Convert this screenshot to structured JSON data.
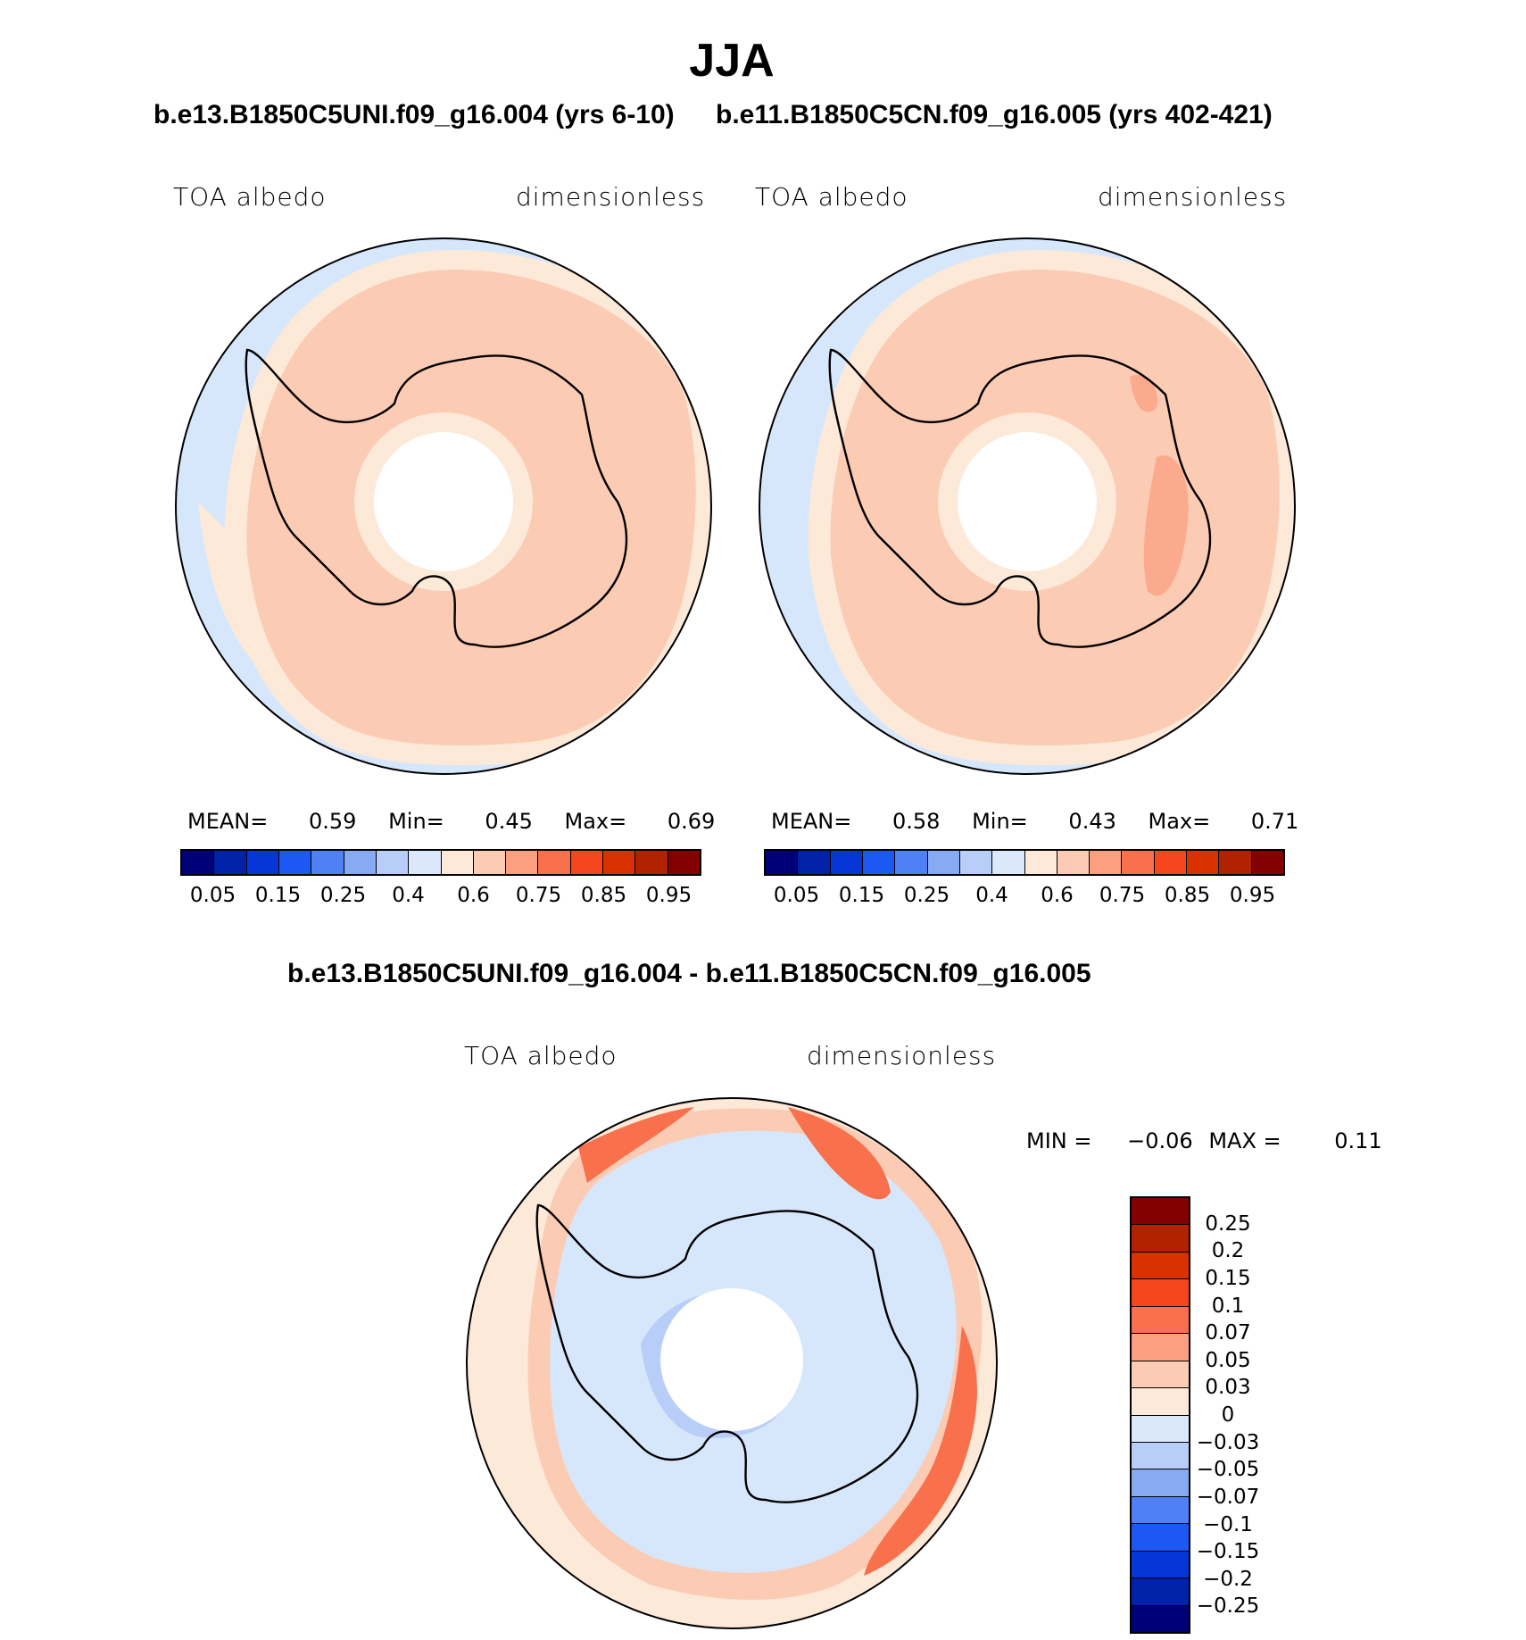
{
  "figure": {
    "title": "JJA"
  },
  "panels": [
    {
      "case_title": "b.e13.B1850C5UNI.f09_g16.004 (yrs 6-10)",
      "var_label": "TOA albedo",
      "units_label": "dimensionless",
      "stats": {
        "mean_label": "MEAN=",
        "mean": "0.59",
        "min_label": "Min=",
        "min": "0.45",
        "max_label": "Max=",
        "max": "0.69"
      }
    },
    {
      "case_title": "b.e11.B1850C5CN.f09_g16.005 (yrs 402-421)",
      "var_label": "TOA albedo",
      "units_label": "dimensionless",
      "stats": {
        "mean_label": "MEAN=",
        "mean": "0.58",
        "min_label": "Min=",
        "min": "0.43",
        "max_label": "Max=",
        "max": "0.71"
      }
    }
  ],
  "diff_panel": {
    "case_title": "b.e13.B1850C5UNI.f09_g16.004 - b.e11.B1850C5CN.f09_g16.005",
    "var_label": "TOA albedo",
    "units_label": "dimensionless",
    "stats": {
      "min_label": "MIN =",
      "min": "−0.06",
      "max_label": "MAX =",
      "max": "0.11"
    }
  },
  "colorbar_main": {
    "tick_labels": [
      "0.05",
      "0.15",
      "0.25",
      "0.4",
      "0.6",
      "0.75",
      "0.85",
      "0.95"
    ],
    "colors": [
      "#000078",
      "#0022a8",
      "#0537d8",
      "#1c58f2",
      "#4f80f5",
      "#88aaf5",
      "#b8cef8",
      "#dbe8fb",
      "#fde9d8",
      "#fbcbb4",
      "#fc9f80",
      "#f8704c",
      "#f5461d",
      "#d93100",
      "#b12200",
      "#830000"
    ]
  },
  "colorbar_diff": {
    "tick_labels": [
      "0.25",
      "0.2",
      "0.15",
      "0.1",
      "0.07",
      "0.05",
      "0.03",
      "0",
      "−0.03",
      "−0.05",
      "−0.07",
      "−0.1",
      "−0.15",
      "−0.2",
      "−0.25"
    ],
    "colors": [
      "#830000",
      "#b12200",
      "#d93100",
      "#f5461d",
      "#f8704c",
      "#fc9f80",
      "#fbcbb4",
      "#fde9d8",
      "#dbe8fb",
      "#b8cef8",
      "#88aaf5",
      "#4f80f5",
      "#1c58f2",
      "#0537d8",
      "#0022a8",
      "#000078"
    ]
  }
}
